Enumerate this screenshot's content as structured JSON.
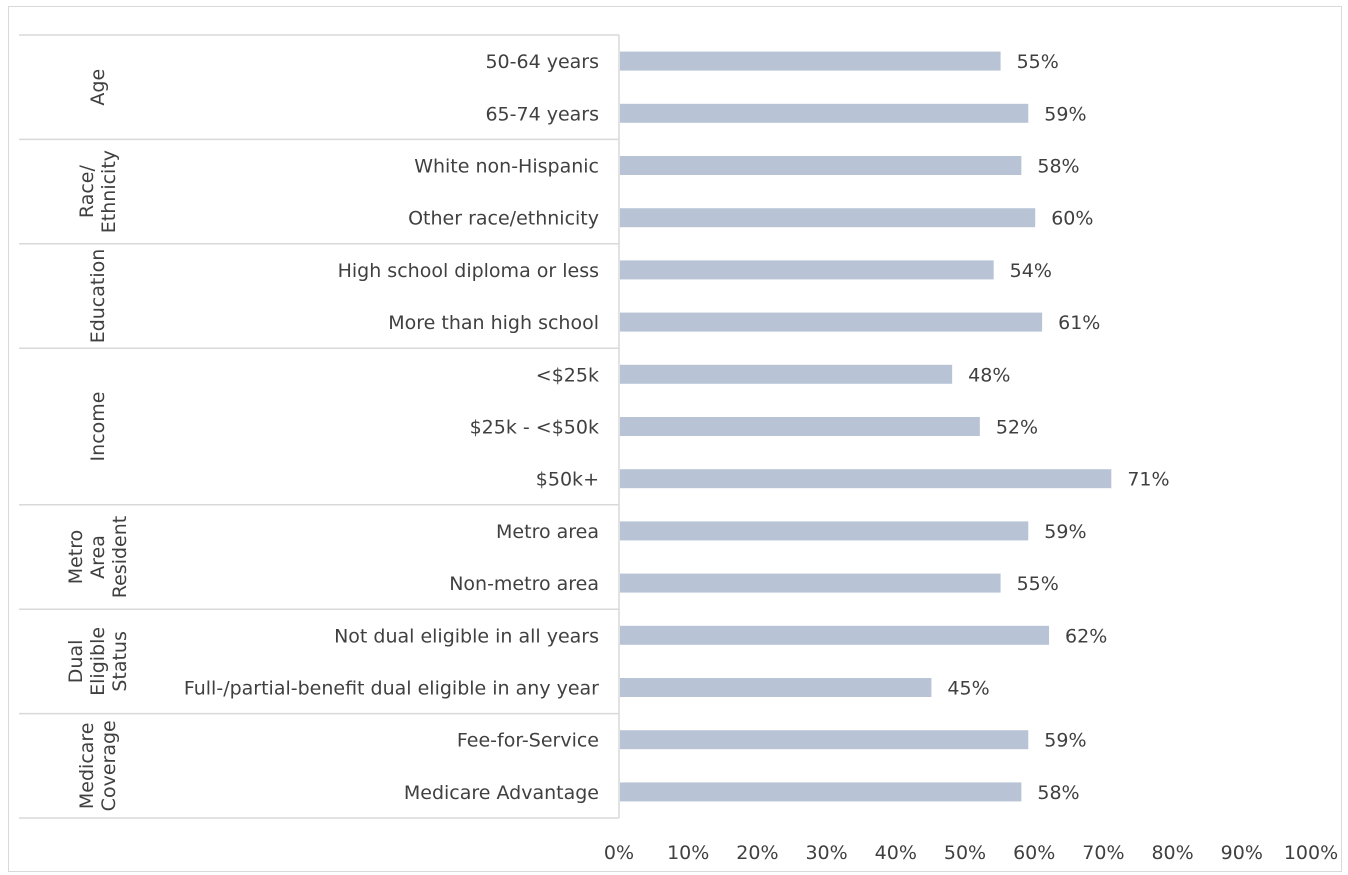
{
  "chart_data": {
    "type": "bar",
    "orientation": "horizontal",
    "xlim": [
      0,
      100
    ],
    "x_unit": "%",
    "x_ticks": [
      "0%",
      "10%",
      "20%",
      "30%",
      "40%",
      "50%",
      "60%",
      "70%",
      "80%",
      "90%",
      "100%"
    ],
    "bar_color": "#b8c4d6",
    "grid": false,
    "legend": "none",
    "groups": [
      {
        "label": [
          "Age"
        ],
        "items": [
          {
            "label": "50-64 years",
            "value": 55,
            "value_label": "55%"
          },
          {
            "label": "65-74 years",
            "value": 59,
            "value_label": "59%"
          }
        ]
      },
      {
        "label": [
          "Race/",
          "Ethnicity"
        ],
        "items": [
          {
            "label": "White non-Hispanic",
            "value": 58,
            "value_label": "58%"
          },
          {
            "label": "Other race/ethnicity",
            "value": 60,
            "value_label": "60%"
          }
        ]
      },
      {
        "label": [
          "Education"
        ],
        "items": [
          {
            "label": "High school diploma or less",
            "value": 54,
            "value_label": "54%"
          },
          {
            "label": "More than high school",
            "value": 61,
            "value_label": "61%"
          }
        ]
      },
      {
        "label": [
          "Income"
        ],
        "items": [
          {
            "label": "<$25k",
            "value": 48,
            "value_label": "48%"
          },
          {
            "label": "$25k - <$50k",
            "value": 52,
            "value_label": "52%"
          },
          {
            "label": "$50k+",
            "value": 71,
            "value_label": "71%"
          }
        ]
      },
      {
        "label": [
          "Metro",
          "Area",
          "Resident"
        ],
        "items": [
          {
            "label": "Metro area",
            "value": 59,
            "value_label": "59%"
          },
          {
            "label": "Non-metro area",
            "value": 55,
            "value_label": "55%"
          }
        ]
      },
      {
        "label": [
          "Dual",
          "Eligible",
          "Status"
        ],
        "items": [
          {
            "label": "Not dual eligible in all years",
            "value": 62,
            "value_label": "62%"
          },
          {
            "label": "Full-/partial-benefit dual eligible in any year",
            "value": 45,
            "value_label": "45%"
          }
        ]
      },
      {
        "label": [
          "Medicare",
          "Coverage"
        ],
        "items": [
          {
            "label": "Fee-for-Service",
            "value": 59,
            "value_label": "59%"
          },
          {
            "label": "Medicare Advantage",
            "value": 58,
            "value_label": "58%"
          }
        ]
      }
    ]
  }
}
